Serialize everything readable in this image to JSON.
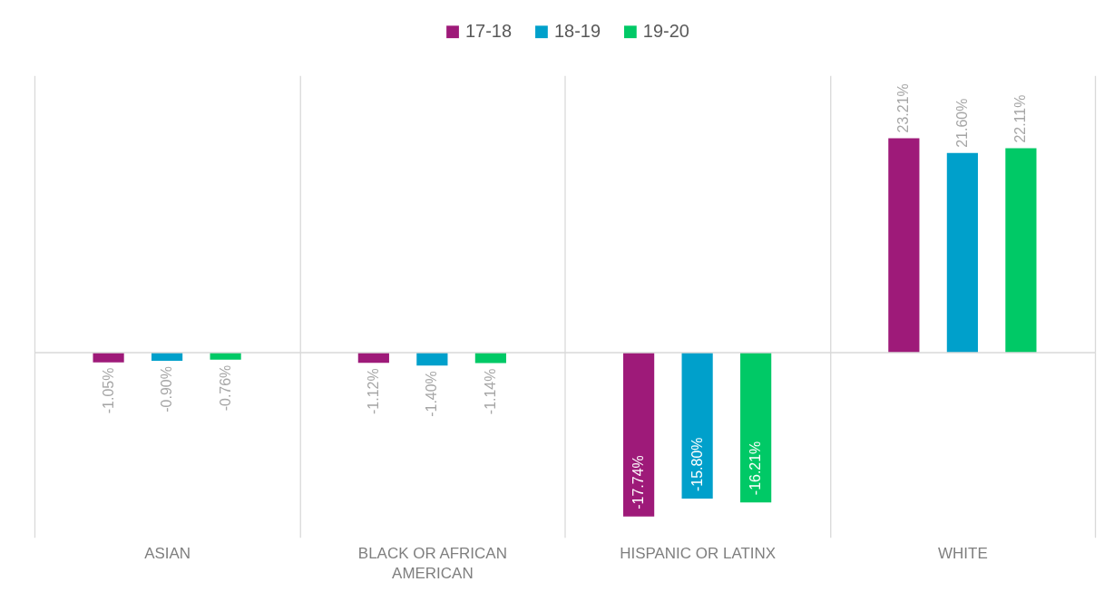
{
  "chart_data": {
    "type": "bar",
    "categories": [
      "ASIAN",
      "BLACK OR AFRICAN AMERICAN",
      "HISPANIC OR LATINX",
      "WHITE"
    ],
    "series": [
      {
        "name": "17-18",
        "color": "#9e1a79",
        "values": [
          -1.05,
          -1.12,
          -17.74,
          23.21
        ],
        "value_labels": [
          "-1.05%",
          "-1.12%",
          "-17.74%",
          "23.21%"
        ]
      },
      {
        "name": "18-19",
        "color": "#00a0cb",
        "values": [
          -0.9,
          -1.4,
          -15.8,
          21.6
        ],
        "value_labels": [
          "-0.90%",
          "-1.40%",
          "-15.80%",
          "21.60%"
        ]
      },
      {
        "name": "19-20",
        "color": "#00c966",
        "values": [
          -0.76,
          -1.14,
          -16.21,
          22.11
        ],
        "value_labels": [
          "-0.76%",
          "-1.14%",
          "-16.21%",
          "22.11%"
        ]
      }
    ],
    "ylim": [
      -20,
      30
    ],
    "tick_labels": "x",
    "grid": "x",
    "legend": "top"
  }
}
